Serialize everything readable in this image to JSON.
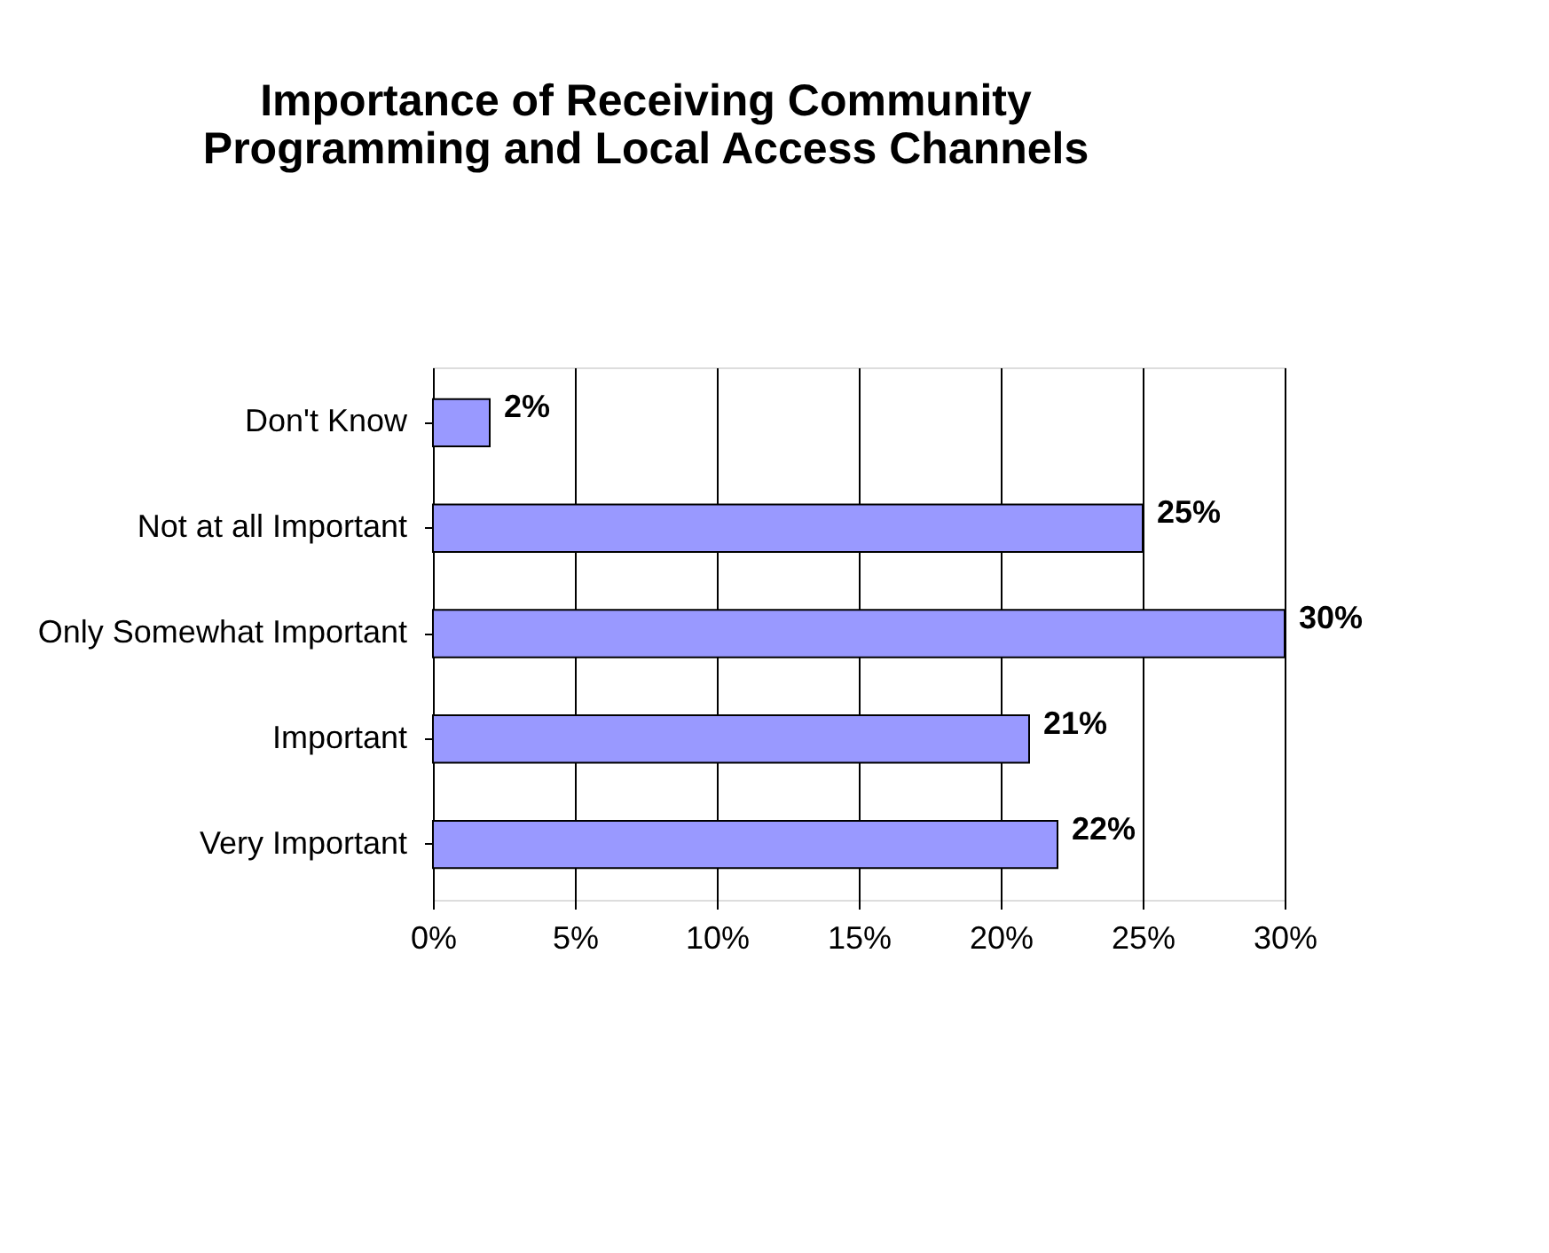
{
  "chart_data": {
    "type": "bar",
    "orientation": "horizontal",
    "title": "Importance of Receiving Community\nProgramming and Local Access Channels",
    "categories": [
      "Don't Know",
      "Not at all Important",
      "Only Somewhat Important",
      "Important",
      "Very Important"
    ],
    "values": [
      2,
      25,
      30,
      21,
      22
    ],
    "value_labels": [
      "2%",
      "25%",
      "30%",
      "21%",
      "22%"
    ],
    "color": "#9999ff",
    "xlim": [
      0,
      30
    ],
    "xticks": [
      {
        "value": 0,
        "label": "0%"
      },
      {
        "value": 5,
        "label": "5%"
      },
      {
        "value": 10,
        "label": "10%"
      },
      {
        "value": 15,
        "label": "15%"
      },
      {
        "value": 20,
        "label": "20%"
      },
      {
        "value": 25,
        "label": "25%"
      },
      {
        "value": 30,
        "label": "30%"
      }
    ],
    "grid": "x"
  }
}
